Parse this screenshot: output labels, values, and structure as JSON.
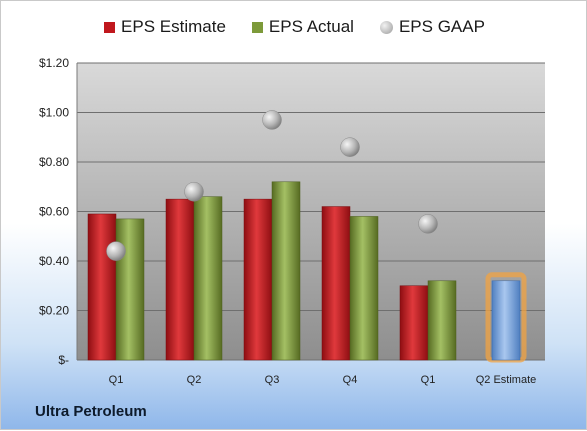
{
  "chart_data": {
    "type": "bar",
    "categories": [
      "Q1",
      "Q2",
      "Q3",
      "Q4",
      "Q1",
      "Q2 Estimate"
    ],
    "series": [
      {
        "name": "EPS Estimate",
        "kind": "bar",
        "color": "#c0171d",
        "values": [
          0.59,
          0.65,
          0.65,
          0.62,
          0.3,
          null
        ]
      },
      {
        "name": "EPS Actual",
        "kind": "bar",
        "color": "#7d9a3a",
        "values": [
          0.57,
          0.66,
          0.72,
          0.58,
          0.32,
          null
        ]
      },
      {
        "name": "EPS GAAP",
        "kind": "marker",
        "color": "#b8b8b8",
        "values": [
          0.44,
          0.68,
          0.97,
          0.86,
          0.55,
          null
        ]
      },
      {
        "kind": "bar",
        "color": "#7fa7dd",
        "highlight": "#f2a341",
        "values": [
          null,
          null,
          null,
          null,
          null,
          0.32
        ]
      }
    ],
    "y_ticks": [
      "$-",
      "$0.20",
      "$0.40",
      "$0.60",
      "$0.80",
      "$1.00",
      "$1.20"
    ],
    "ylim": [
      0,
      1.2
    ],
    "grid": true,
    "legend_position": "top"
  },
  "company_name": "Ultra Petroleum"
}
